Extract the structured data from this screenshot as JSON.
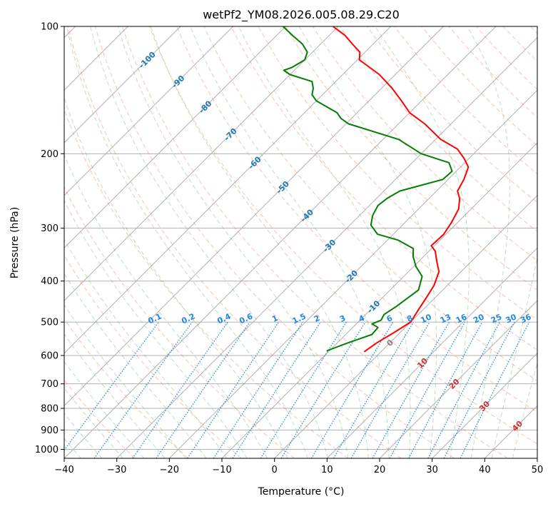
{
  "chart_data": {
    "type": "line",
    "title": "wetPf2_YM08.2026.005.08.29.C20",
    "xlabel": "Temperature (°C)",
    "ylabel": "Pressure (hPa)",
    "xlim": [
      -40,
      50
    ],
    "ylim": [
      1050,
      100
    ],
    "y_scale": "log",
    "skew": 1.0,
    "grid": true,
    "x_ticks": [
      -40,
      -30,
      -20,
      -10,
      0,
      10,
      20,
      30,
      40,
      50
    ],
    "y_ticks": [
      100,
      200,
      300,
      400,
      500,
      600,
      700,
      800,
      900,
      1000
    ],
    "isotherm_labels": [
      "-100",
      "-90",
      "-80",
      "-70",
      "-60",
      "-50",
      "-40",
      "-30",
      "-20",
      "-10"
    ],
    "mixing_ratio_labels": [
      "0.1",
      "0.2",
      "0.4",
      "0.6",
      "1",
      "1.5",
      "2",
      "3",
      "4",
      "6",
      "8",
      "10",
      "13",
      "16",
      "20",
      "25",
      "30",
      "36"
    ],
    "moist_adiabat_labels": [
      "0",
      "10",
      "20",
      "30",
      "40"
    ],
    "colors": {
      "temperature": "#ff0000",
      "dewpoint": "#008000",
      "isotherm": "#1f77b4",
      "mixing_ratio": "#1e88e5",
      "dry_adiabat": "#ff7043",
      "moist_adiabat": "#66bb6a",
      "moist_label": "#d32f2f",
      "zero_label": "#808080",
      "grid": "#b0b0b0"
    },
    "series": [
      {
        "key": "temperature",
        "p": [
          588,
          560,
          530,
          500,
          470,
          440,
          410,
          380,
          360,
          340,
          330,
          310,
          290,
          270,
          255,
          245,
          230,
          215,
          205,
          195,
          185,
          170,
          160,
          150,
          140,
          130,
          120,
          115,
          110,
          105,
          100
        ],
        "t": [
          -3.2,
          -2.5,
          -1.2,
          0.0,
          -0.8,
          -1.6,
          -2.5,
          -4.2,
          -6.5,
          -8.8,
          -10.6,
          -10.4,
          -11.2,
          -12.4,
          -14.2,
          -16.0,
          -17.0,
          -18.5,
          -21.0,
          -24.0,
          -29.0,
          -35.0,
          -40.0,
          -43.8,
          -48.0,
          -53.0,
          -59.6,
          -61.0,
          -64.0,
          -67.0,
          -71.0
        ]
      },
      {
        "key": "dewpoint",
        "p": [
          585,
          560,
          535,
          515,
          505,
          495,
          480,
          460,
          420,
          390,
          370,
          350,
          335,
          320,
          310,
          295,
          280,
          265,
          255,
          245,
          230,
          220,
          210,
          200,
          185,
          170,
          165,
          160,
          150,
          145,
          140,
          135,
          130,
          127,
          125,
          120,
          115,
          110,
          105,
          100
        ],
        "t": [
          -10.5,
          -8.0,
          -5.0,
          -5.2,
          -7.0,
          -6.0,
          -6.5,
          -5.7,
          -4.6,
          -6.5,
          -9.5,
          -12.0,
          -13.5,
          -18.0,
          -23.0,
          -26.0,
          -27.5,
          -28.4,
          -28.0,
          -27.0,
          -21.0,
          -20.8,
          -23.0,
          -30.0,
          -37.0,
          -49.5,
          -52.0,
          -53.8,
          -60.0,
          -62.0,
          -63.0,
          -64.5,
          -70.0,
          -72.0,
          -71.0,
          -70.0,
          -71.0,
          -73.5,
          -77.0,
          -80.5
        ]
      }
    ]
  }
}
